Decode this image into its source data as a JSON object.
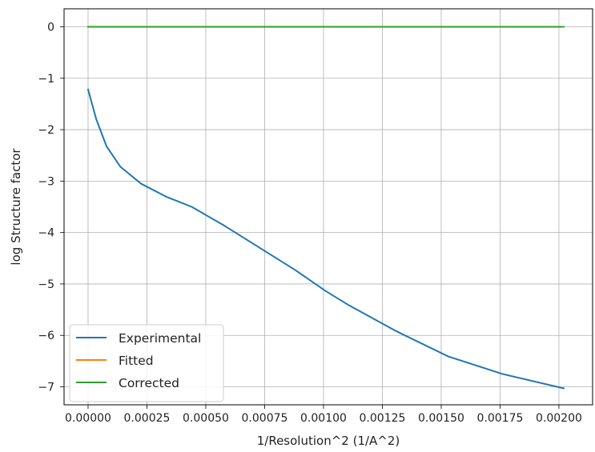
{
  "chart_data": {
    "type": "line",
    "title": "",
    "xlabel": "1/Resolution^2 (1/A^2)",
    "ylabel": "log Structure factor",
    "xlim": [
      -0.000102,
      0.002143
    ],
    "ylim": [
      -7.35,
      0.35
    ],
    "grid": true,
    "legend_position": "lower-left",
    "x_ticks": [
      0.0,
      0.00025,
      0.0005,
      0.00075,
      0.001,
      0.00125,
      0.0015,
      0.00175,
      0.002
    ],
    "x_tick_labels": [
      "0.00000",
      "0.00025",
      "0.00050",
      "0.00075",
      "0.00100",
      "0.00125",
      "0.00150",
      "0.00175",
      "0.00200"
    ],
    "y_ticks": [
      0,
      -1,
      -2,
      -3,
      -4,
      -5,
      -6,
      -7
    ],
    "y_tick_labels": [
      "0",
      "−1",
      "−2",
      "−3",
      "−4",
      "−5",
      "−6",
      "−7"
    ],
    "series": [
      {
        "name": "Experimental",
        "color": "#1f77b4",
        "x": [
          0.0,
          1.2e-05,
          3.5e-05,
          7.8e-05,
          0.000137,
          0.000225,
          0.00033,
          0.00044,
          0.00058,
          0.00073,
          0.00088,
          0.00101,
          0.00111,
          0.00131,
          0.00153,
          0.00176,
          0.00202
        ],
        "y": [
          -1.22,
          -1.42,
          -1.8,
          -2.32,
          -2.72,
          -3.05,
          -3.3,
          -3.5,
          -3.87,
          -4.3,
          -4.73,
          -5.14,
          -5.42,
          -5.92,
          -6.41,
          -6.75,
          -7.03
        ]
      },
      {
        "name": "Fitted",
        "color": "#ff7f0e",
        "x": [
          0.0,
          0.00202
        ],
        "y": [
          0.0,
          0.0
        ]
      },
      {
        "name": "Corrected",
        "color": "#2ca02c",
        "x": [
          0.0,
          0.00202
        ],
        "y": [
          0.0,
          0.0
        ]
      }
    ]
  }
}
